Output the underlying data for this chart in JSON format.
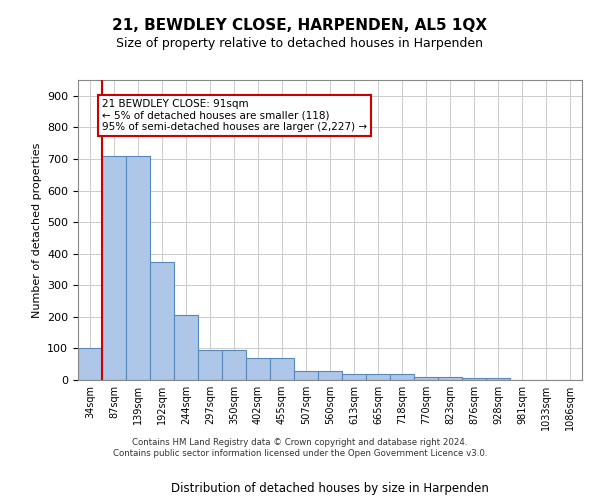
{
  "title": "21, BEWDLEY CLOSE, HARPENDEN, AL5 1QX",
  "subtitle": "Size of property relative to detached houses in Harpenden",
  "xlabel": "Distribution of detached houses by size in Harpenden",
  "ylabel": "Number of detached properties",
  "categories": [
    "34sqm",
    "87sqm",
    "139sqm",
    "192sqm",
    "244sqm",
    "297sqm",
    "350sqm",
    "402sqm",
    "455sqm",
    "507sqm",
    "560sqm",
    "613sqm",
    "665sqm",
    "718sqm",
    "770sqm",
    "823sqm",
    "876sqm",
    "928sqm",
    "981sqm",
    "1033sqm",
    "1086sqm"
  ],
  "values": [
    100,
    710,
    710,
    375,
    205,
    95,
    95,
    70,
    70,
    30,
    30,
    20,
    20,
    20,
    10,
    10,
    5,
    5,
    0,
    0,
    0
  ],
  "bar_color": "#aec6e8",
  "bar_edge_color": "#5588bb",
  "highlight_bar_index": 1,
  "highlight_line_color": "#cc0000",
  "ylim": [
    0,
    950
  ],
  "yticks": [
    0,
    100,
    200,
    300,
    400,
    500,
    600,
    700,
    800,
    900
  ],
  "annotation_title": "21 BEWDLEY CLOSE: 91sqm",
  "annotation_line1": "← 5% of detached houses are smaller (118)",
  "annotation_line2": "95% of semi-detached houses are larger (2,227) →",
  "annotation_box_color": "#ffffff",
  "annotation_border_color": "#cc0000",
  "footer_line1": "Contains HM Land Registry data © Crown copyright and database right 2024.",
  "footer_line2": "Contains public sector information licensed under the Open Government Licence v3.0.",
  "background_color": "#ffffff",
  "grid_color": "#cccccc"
}
